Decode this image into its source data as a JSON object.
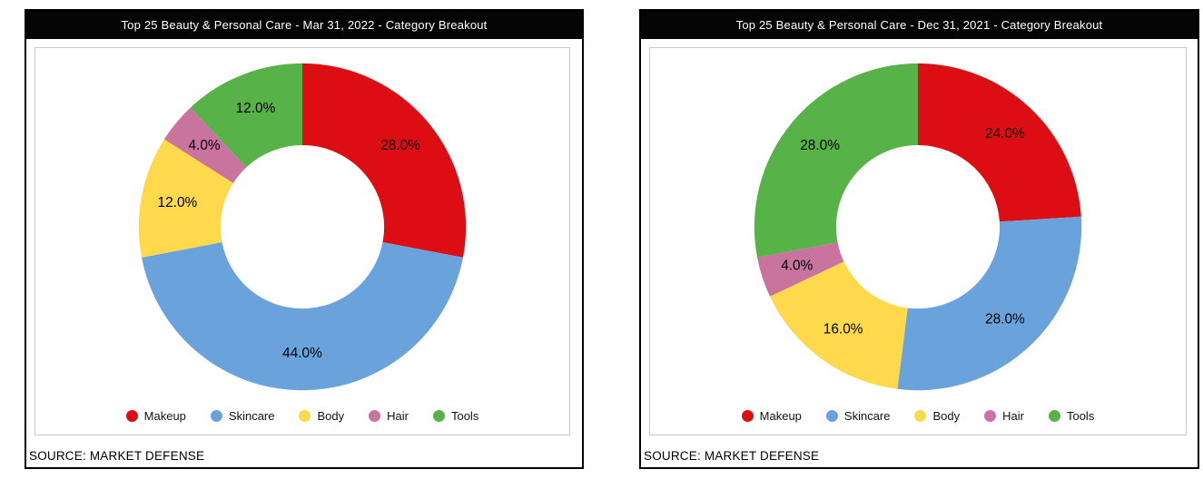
{
  "panels": [
    {
      "source": "SOURCE: MARKET DEFENSE"
    },
    {
      "source": "SOURCE: MARKET DEFENSE"
    }
  ],
  "chart_data": [
    {
      "type": "pie",
      "subtype": "donut",
      "title": "Top 25 Beauty & Personal Care - Mar 31, 2022 - Category Breakout",
      "categories": [
        "Makeup",
        "Skincare",
        "Body",
        "Hair",
        "Tools"
      ],
      "values": [
        28.0,
        44.0,
        12.0,
        4.0,
        12.0
      ],
      "data_labels": [
        "28.0%",
        "44.0%",
        "12.0%",
        "4.0%",
        "12.0%"
      ],
      "colors": [
        "#dd0e13",
        "#6aa3dc",
        "#fed94c",
        "#c9739f",
        "#57b248"
      ],
      "start_angle": "top",
      "direction": "clockwise",
      "hole_ratio": 0.5,
      "legend_position": "bottom",
      "label_text_color": "#000000"
    },
    {
      "type": "pie",
      "subtype": "donut",
      "title": "Top 25 Beauty & Personal Care - Dec 31, 2021 - Category Breakout",
      "categories": [
        "Makeup",
        "Skincare",
        "Body",
        "Hair",
        "Tools"
      ],
      "values": [
        24.0,
        28.0,
        16.0,
        4.0,
        28.0
      ],
      "data_labels": [
        "24.0%",
        "28.0%",
        "16.0%",
        "4.0%",
        "28.0%"
      ],
      "colors": [
        "#dd0e13",
        "#6aa3dc",
        "#fed94c",
        "#c9739f",
        "#57b248"
      ],
      "start_angle": "top",
      "direction": "clockwise",
      "hole_ratio": 0.5,
      "legend_position": "bottom",
      "label_text_color": "#000000"
    }
  ]
}
